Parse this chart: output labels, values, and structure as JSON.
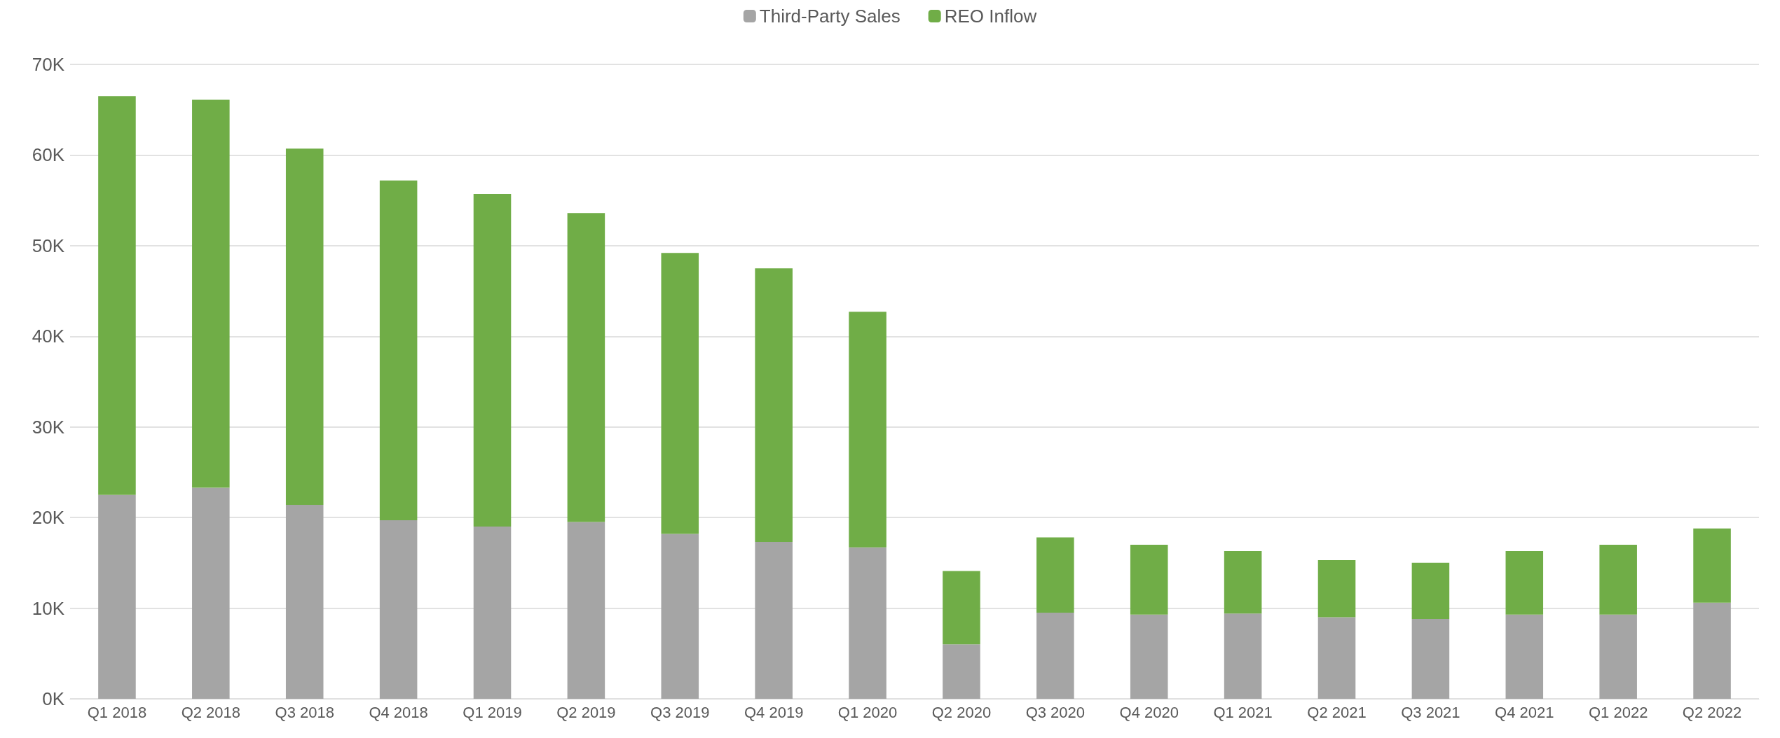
{
  "chart_data": {
    "type": "bar",
    "stacked": true,
    "legend": "top",
    "grid": "y",
    "categories": [
      "Q1 2018",
      "Q2 2018",
      "Q3 2018",
      "Q4 2018",
      "Q1 2019",
      "Q2 2019",
      "Q3 2019",
      "Q4 2019",
      "Q1 2020",
      "Q2 2020",
      "Q3 2020",
      "Q4 2020",
      "Q1 2021",
      "Q2 2021",
      "Q3 2021",
      "Q4 2021",
      "Q1 2022",
      "Q2 2022"
    ],
    "series": [
      {
        "name": "Third-Party Sales",
        "color": "#a5a5a5",
        "values": [
          22500,
          23300,
          21400,
          19700,
          19000,
          19500,
          18200,
          17300,
          16700,
          6000,
          9500,
          9300,
          9400,
          9000,
          8800,
          9300,
          9300,
          10600
        ]
      },
      {
        "name": "REO Inflow",
        "color": "#70ad47",
        "values": [
          44000,
          42800,
          39300,
          37500,
          36700,
          34100,
          31000,
          30200,
          26000,
          8100,
          8300,
          7700,
          6900,
          6300,
          6200,
          7000,
          7700,
          8200
        ]
      }
    ],
    "ylim": [
      0,
      70000
    ],
    "yticks": [
      {
        "value": 0,
        "label": "0K"
      },
      {
        "value": 10000,
        "label": "10K"
      },
      {
        "value": 20000,
        "label": "20K"
      },
      {
        "value": 30000,
        "label": "30K"
      },
      {
        "value": 40000,
        "label": "40K"
      },
      {
        "value": 50000,
        "label": "50K"
      },
      {
        "value": 60000,
        "label": "60K"
      },
      {
        "value": 70000,
        "label": "70K"
      }
    ]
  }
}
